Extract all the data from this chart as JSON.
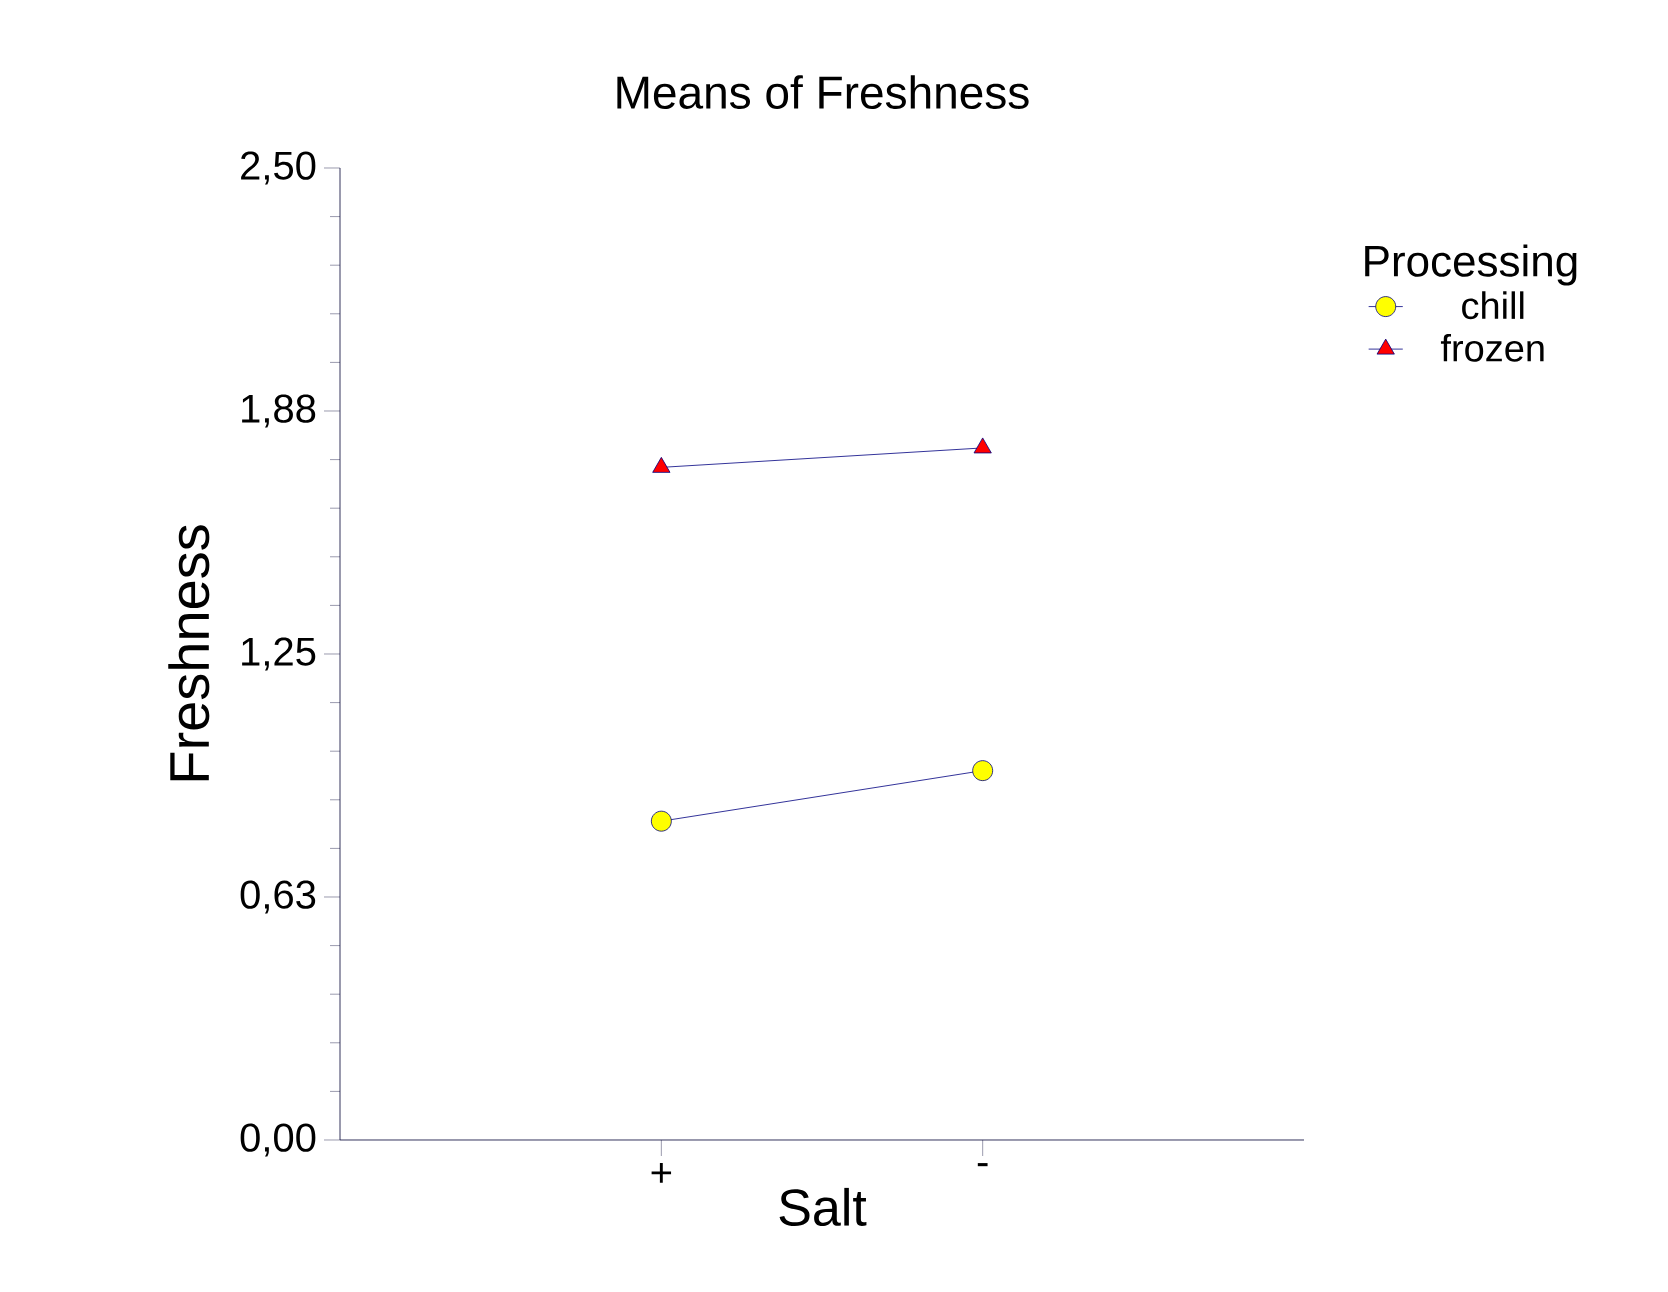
{
  "chart_data": {
    "type": "line",
    "title": "Means of Freshness",
    "xlabel": "Salt",
    "ylabel": "Freshness",
    "legend_title": "Processing",
    "categories": [
      "+",
      "-"
    ],
    "series": [
      {
        "name": "chill",
        "color": "#ffff00",
        "marker": "circle",
        "values": [
          0.82,
          0.95
        ]
      },
      {
        "name": "frozen",
        "color": "#ff0000",
        "marker": "triangle",
        "values": [
          1.73,
          1.78
        ]
      }
    ],
    "ylim": [
      0,
      2.5
    ],
    "yticks": [
      {
        "value": 0,
        "label": "0,00"
      },
      {
        "value": 0.625,
        "label": "0,63"
      },
      {
        "value": 1.25,
        "label": "1,25"
      },
      {
        "value": 1.875,
        "label": "1,88"
      },
      {
        "value": 2.5,
        "label": "2,50"
      }
    ],
    "legend": "right",
    "grid": false
  }
}
